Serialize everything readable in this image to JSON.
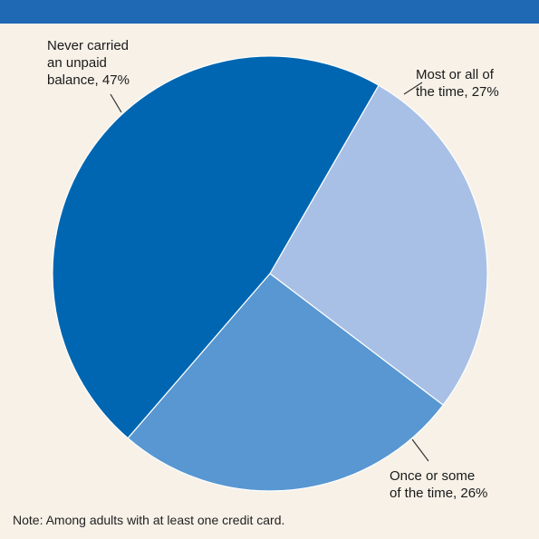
{
  "header": {
    "title": ""
  },
  "chart_data": {
    "type": "pie",
    "title": "",
    "slices": [
      {
        "label": "Never carried an unpaid balance, 47%",
        "label_lines": [
          "Never carried",
          "an unpaid",
          "balance, 47%"
        ],
        "value": 47,
        "color": "#0066b1"
      },
      {
        "label": "Most or all of the time, 27%",
        "label_lines": [
          "Most or all of",
          "the time, 27%"
        ],
        "value": 27,
        "color": "#a8c0e6"
      },
      {
        "label": "Once or some of the time, 26%",
        "label_lines": [
          "Once or some",
          "of the time, 26%"
        ],
        "value": 26,
        "color": "#5897d1"
      }
    ],
    "note": "Note: Among adults with at least one credit card."
  }
}
